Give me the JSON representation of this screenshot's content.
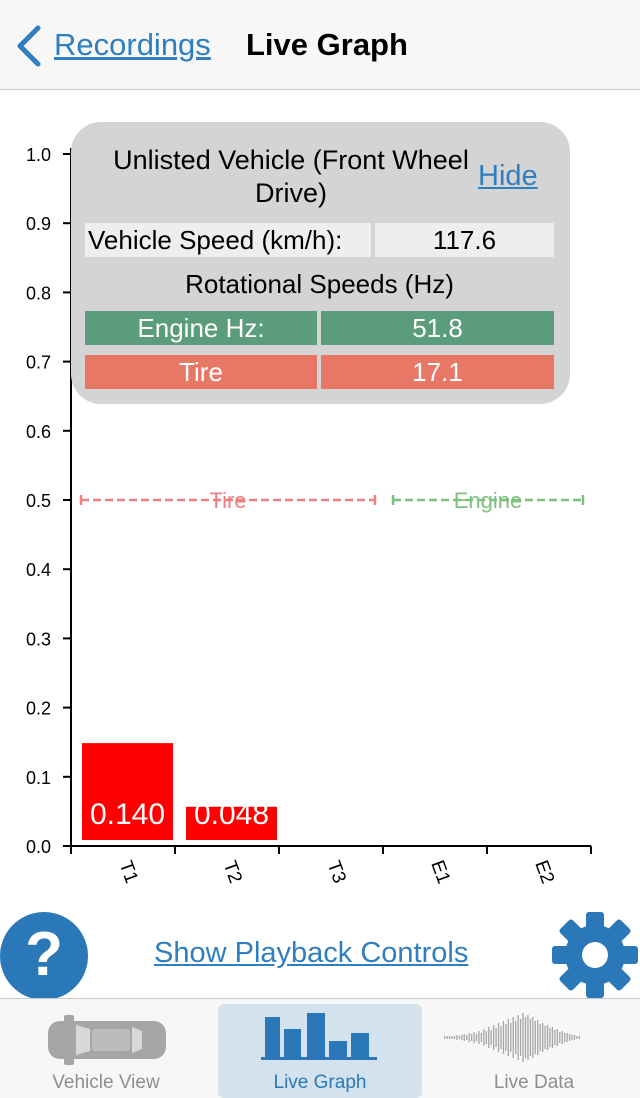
{
  "nav": {
    "back_label": "Recordings",
    "title": "Live Graph"
  },
  "panel": {
    "vehicle_name": "Unlisted Vehicle (Front Wheel Drive)",
    "hide_label": "Hide",
    "speed_label": "Vehicle Speed (km/h):",
    "speed_value": "117.6",
    "rot_title": "Rotational Speeds (Hz)",
    "engine_label": "Engine Hz:",
    "engine_value": "51.8",
    "tire_label": "Tire",
    "tire_value": "17.1"
  },
  "chart_data": {
    "type": "bar",
    "categories": [
      "T1",
      "T2",
      "T3",
      "E1",
      "E2"
    ],
    "values": [
      0.14,
      0.048,
      null,
      null,
      null
    ],
    "value_labels": [
      "0.140",
      "0.048",
      "",
      "",
      ""
    ],
    "ylim": [
      0,
      1.0
    ],
    "yticks": [
      "0.0",
      "0.1",
      "0.2",
      "0.3",
      "0.4",
      "0.5",
      "0.6",
      "0.7",
      "0.8",
      "0.9",
      "1.0"
    ],
    "reference_lines": [
      {
        "name": "Tire",
        "value": 0.5,
        "color": "#f08080"
      },
      {
        "name": "Engine",
        "value": 0.5,
        "color": "#7fbf7f"
      }
    ],
    "bar_color": "#ff0000"
  },
  "controls": {
    "help_label": "?",
    "playback_label": "Show Playback Controls"
  },
  "tabs": [
    {
      "label": "Vehicle View",
      "active": false
    },
    {
      "label": "Live Graph",
      "active": true
    },
    {
      "label": "Live Data",
      "active": false
    }
  ],
  "colors": {
    "accent": "#2a78b7",
    "link": "#2f7ebf",
    "engine": "#5b9c7b",
    "tire": "#e87866"
  }
}
